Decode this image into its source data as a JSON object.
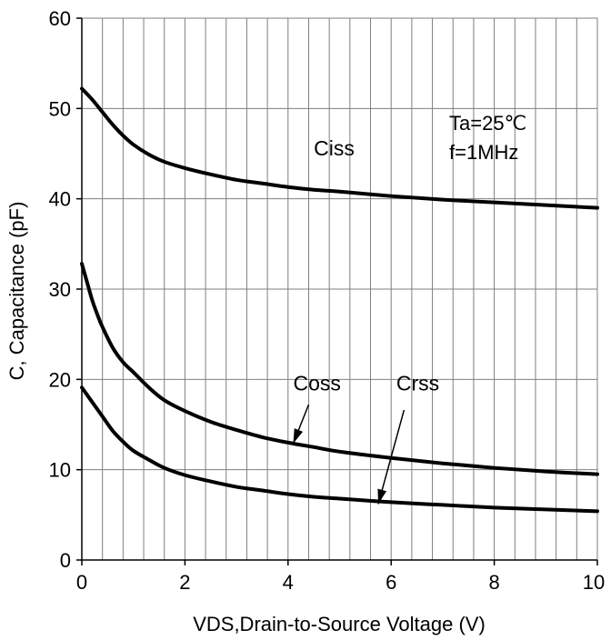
{
  "chart_data": {
    "type": "line",
    "title": "",
    "xlabel": "VDS,Drain-to-Source Voltage (V)",
    "ylabel": "C, Capacitance (pF)",
    "xlim": [
      0,
      10
    ],
    "ylim": [
      0,
      60
    ],
    "xticks": [
      0,
      2,
      4,
      6,
      8,
      10
    ],
    "yticks": [
      0,
      10,
      20,
      30,
      40,
      50,
      60
    ],
    "grid": {
      "major_x_step": 0.4,
      "major_y_step": 10,
      "vertical": true,
      "horizontal": true
    },
    "annotations": [
      "Ta=25℃",
      "f=1MHz"
    ],
    "series": [
      {
        "name": "Ciss",
        "x": [
          0,
          0.2,
          0.4,
          0.6,
          0.8,
          1.0,
          1.3,
          1.6,
          2.0,
          2.5,
          3.0,
          3.5,
          4.0,
          4.5,
          5.0,
          6.0,
          7.0,
          8.0,
          9.0,
          10.0
        ],
        "y": [
          52.2,
          51.0,
          49.6,
          48.2,
          47.0,
          46.0,
          44.9,
          44.1,
          43.4,
          42.7,
          42.1,
          41.7,
          41.3,
          41.0,
          40.8,
          40.3,
          39.9,
          39.6,
          39.3,
          39.0
        ]
      },
      {
        "name": "Coss",
        "x": [
          0,
          0.1,
          0.2,
          0.3,
          0.4,
          0.6,
          0.8,
          1.0,
          1.3,
          1.6,
          2.0,
          2.5,
          3.0,
          3.5,
          4.0,
          4.5,
          5.0,
          6.0,
          7.0,
          8.0,
          9.0,
          10.0
        ],
        "y": [
          32.8,
          30.8,
          28.8,
          27.2,
          25.8,
          23.5,
          21.9,
          20.8,
          19.1,
          17.7,
          16.5,
          15.3,
          14.4,
          13.6,
          13.0,
          12.5,
          12.0,
          11.3,
          10.7,
          10.2,
          9.8,
          9.5
        ]
      },
      {
        "name": "Crss",
        "x": [
          0,
          0.2,
          0.4,
          0.6,
          0.8,
          1.0,
          1.3,
          1.6,
          2.0,
          2.5,
          3.0,
          3.5,
          4.0,
          4.5,
          5.0,
          6.0,
          7.0,
          8.0,
          9.0,
          10.0
        ],
        "y": [
          19.1,
          17.5,
          15.9,
          14.3,
          13.1,
          12.1,
          11.1,
          10.2,
          9.4,
          8.7,
          8.1,
          7.7,
          7.3,
          7.0,
          6.8,
          6.4,
          6.1,
          5.8,
          5.6,
          5.4
        ]
      }
    ],
    "arrows": [
      {
        "series": "Coss",
        "from": [
          4.4,
          17.2
        ],
        "to": [
          4.1,
          12.9
        ]
      },
      {
        "series": "Crss",
        "from": [
          6.25,
          16.6
        ],
        "to": [
          5.75,
          6.2
        ]
      }
    ],
    "label_positions": [
      {
        "series": "Ciss",
        "x": 4.5,
        "y": 44.8
      },
      {
        "series": "Coss",
        "x": 4.1,
        "y": 18.8
      },
      {
        "series": "Crss",
        "x": 6.1,
        "y": 18.8
      }
    ]
  },
  "colors": {
    "line": "#000000",
    "grid": "#7f7f7f",
    "axis": "#000000"
  }
}
